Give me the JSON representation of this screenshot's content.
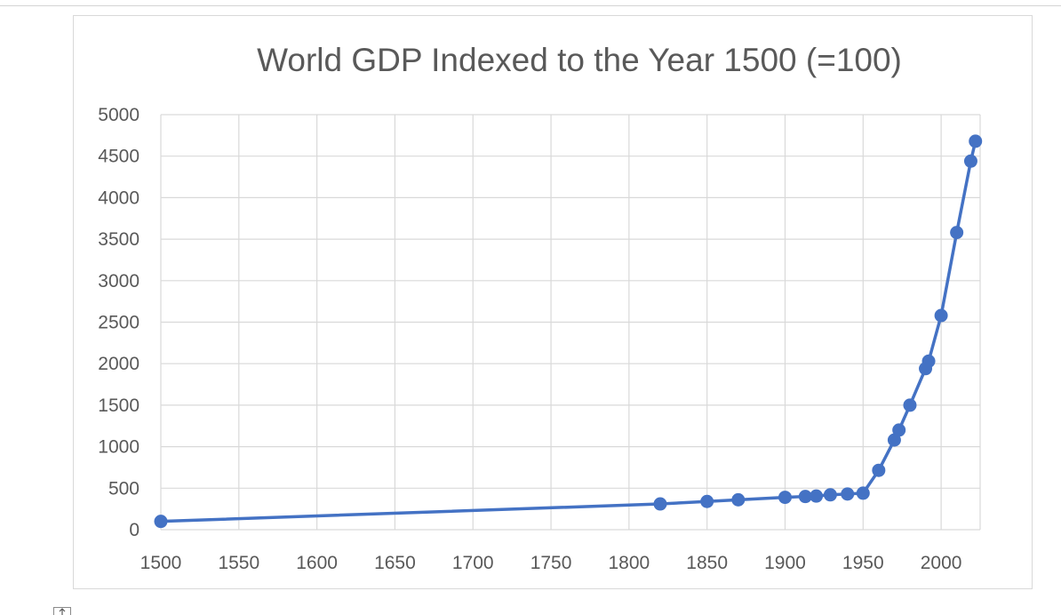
{
  "chart_data": {
    "type": "line",
    "title": "World GDP Indexed to the Year 1500 (=100)",
    "xlabel": "",
    "ylabel": "",
    "xlim": [
      1500,
      2025
    ],
    "ylim": [
      0,
      5000
    ],
    "xticks": [
      1500,
      1550,
      1600,
      1650,
      1700,
      1750,
      1800,
      1850,
      1900,
      1950,
      2000
    ],
    "yticks": [
      0,
      500,
      1000,
      1500,
      2000,
      2500,
      3000,
      3500,
      4000,
      4500,
      5000
    ],
    "grid": true,
    "legend": "none",
    "series_color": "#4472c4",
    "gridline_color": "#d9d9d9",
    "series": [
      {
        "x": [
          1500,
          1820,
          1850,
          1870,
          1900,
          1913,
          1920,
          1929,
          1940,
          1950,
          1960,
          1970,
          1973,
          1980,
          1990,
          1992,
          2000,
          2010,
          2019,
          2022
        ],
        "values": [
          100,
          310,
          340,
          360,
          390,
          400,
          405,
          420,
          430,
          440,
          715,
          1080,
          1200,
          1500,
          1940,
          2030,
          2580,
          3580,
          4440,
          4680
        ]
      }
    ]
  },
  "icons": {
    "anchor": "anchor-icon"
  }
}
